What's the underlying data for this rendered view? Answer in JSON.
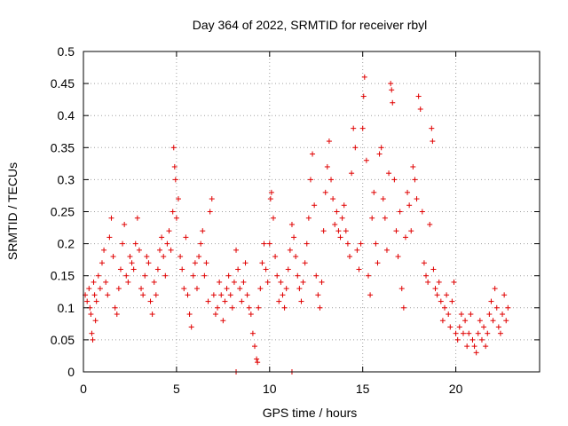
{
  "chart_data": {
    "type": "scatter",
    "title": "Day 364 of 2022, SRMTID for receiver rbyl",
    "xlabel": "GPS time / hours",
    "ylabel": "SRMTID / TECUs",
    "xlim": [
      0,
      24.5
    ],
    "ylim": [
      0,
      0.5
    ],
    "xticks": [
      0,
      5,
      10,
      15,
      20
    ],
    "yticks": [
      0,
      0.05,
      0.1,
      0.15,
      0.2,
      0.25,
      0.3,
      0.35,
      0.4,
      0.45,
      0.5
    ],
    "xtick_labels": [
      "0",
      "5",
      "10",
      "15",
      "20"
    ],
    "ytick_labels": [
      "0",
      "0.05",
      "0.1",
      "0.15",
      "0.2",
      "0.25",
      "0.3",
      "0.35",
      "0.4",
      "0.45",
      "0.5"
    ],
    "grid": true,
    "marker": "plus",
    "color": "#e00000",
    "series": [
      {
        "points": [
          [
            0.1,
            0.12
          ],
          [
            0.2,
            0.11
          ],
          [
            0.3,
            0.13
          ],
          [
            0.35,
            0.1
          ],
          [
            0.4,
            0.09
          ],
          [
            0.45,
            0.06
          ],
          [
            0.5,
            0.05
          ],
          [
            0.55,
            0.14
          ],
          [
            0.6,
            0.12
          ],
          [
            0.65,
            0.08
          ],
          [
            0.7,
            0.11
          ],
          [
            0.8,
            0.15
          ],
          [
            0.9,
            0.13
          ],
          [
            1.0,
            0.17
          ],
          [
            1.1,
            0.19
          ],
          [
            1.2,
            0.14
          ],
          [
            1.3,
            0.12
          ],
          [
            1.4,
            0.21
          ],
          [
            1.5,
            0.24
          ],
          [
            1.6,
            0.18
          ],
          [
            1.7,
            0.1
          ],
          [
            1.8,
            0.09
          ],
          [
            1.9,
            0.13
          ],
          [
            2.0,
            0.16
          ],
          [
            2.1,
            0.2
          ],
          [
            2.2,
            0.23
          ],
          [
            2.3,
            0.15
          ],
          [
            2.4,
            0.14
          ],
          [
            2.5,
            0.18
          ],
          [
            2.6,
            0.17
          ],
          [
            2.7,
            0.16
          ],
          [
            2.8,
            0.2
          ],
          [
            2.9,
            0.24
          ],
          [
            3.0,
            0.19
          ],
          [
            3.1,
            0.13
          ],
          [
            3.2,
            0.12
          ],
          [
            3.3,
            0.15
          ],
          [
            3.4,
            0.18
          ],
          [
            3.5,
            0.17
          ],
          [
            3.6,
            0.11
          ],
          [
            3.7,
            0.09
          ],
          [
            3.8,
            0.14
          ],
          [
            3.9,
            0.12
          ],
          [
            4.0,
            0.16
          ],
          [
            4.1,
            0.19
          ],
          [
            4.2,
            0.21
          ],
          [
            4.3,
            0.18
          ],
          [
            4.4,
            0.15
          ],
          [
            4.5,
            0.2
          ],
          [
            4.6,
            0.22
          ],
          [
            4.7,
            0.19
          ],
          [
            4.8,
            0.25
          ],
          [
            4.85,
            0.35
          ],
          [
            4.9,
            0.32
          ],
          [
            4.95,
            0.3
          ],
          [
            5.0,
            0.24
          ],
          [
            5.1,
            0.27
          ],
          [
            5.2,
            0.18
          ],
          [
            5.3,
            0.16
          ],
          [
            5.4,
            0.13
          ],
          [
            5.5,
            0.21
          ],
          [
            5.6,
            0.12
          ],
          [
            5.7,
            0.09
          ],
          [
            5.8,
            0.07
          ],
          [
            5.9,
            0.15
          ],
          [
            6.0,
            0.17
          ],
          [
            6.1,
            0.13
          ],
          [
            6.2,
            0.18
          ],
          [
            6.3,
            0.2
          ],
          [
            6.4,
            0.22
          ],
          [
            6.5,
            0.15
          ],
          [
            6.6,
            0.17
          ],
          [
            6.7,
            0.11
          ],
          [
            6.8,
            0.25
          ],
          [
            6.9,
            0.27
          ],
          [
            7.0,
            0.12
          ],
          [
            7.1,
            0.09
          ],
          [
            7.2,
            0.1
          ],
          [
            7.3,
            0.14
          ],
          [
            7.4,
            0.12
          ],
          [
            7.5,
            0.08
          ],
          [
            7.6,
            0.11
          ],
          [
            7.7,
            0.13
          ],
          [
            7.8,
            0.15
          ],
          [
            7.9,
            0.12
          ],
          [
            8.0,
            0.1
          ],
          [
            8.1,
            0.14
          ],
          [
            8.2,
            0.19
          ],
          [
            8.3,
            0.16
          ],
          [
            8.4,
            0.13
          ],
          [
            8.5,
            0.11
          ],
          [
            8.6,
            0.14
          ],
          [
            8.7,
            0.17
          ],
          [
            8.8,
            0.12
          ],
          [
            8.9,
            0.1
          ],
          [
            9.0,
            0.09
          ],
          [
            9.1,
            0.06
          ],
          [
            9.2,
            0.04
          ],
          [
            9.3,
            0.02
          ],
          [
            9.35,
            0.015
          ],
          [
            9.4,
            0.1
          ],
          [
            9.5,
            0.13
          ],
          [
            9.6,
            0.17
          ],
          [
            9.7,
            0.2
          ],
          [
            9.8,
            0.16
          ],
          [
            9.9,
            0.14
          ],
          [
            10.0,
            0.2
          ],
          [
            10.05,
            0.27
          ],
          [
            10.1,
            0.28
          ],
          [
            10.2,
            0.24
          ],
          [
            10.3,
            0.18
          ],
          [
            10.4,
            0.15
          ],
          [
            10.5,
            0.11
          ],
          [
            10.6,
            0.14
          ],
          [
            10.7,
            0.12
          ],
          [
            10.8,
            0.1
          ],
          [
            10.9,
            0.13
          ],
          [
            11.0,
            0.16
          ],
          [
            11.1,
            0.19
          ],
          [
            11.2,
            0.23
          ],
          [
            11.3,
            0.21
          ],
          [
            11.4,
            0.18
          ],
          [
            11.5,
            0.15
          ],
          [
            11.6,
            0.13
          ],
          [
            11.7,
            0.11
          ],
          [
            11.8,
            0.14
          ],
          [
            11.9,
            0.17
          ],
          [
            12.0,
            0.2
          ],
          [
            12.1,
            0.24
          ],
          [
            12.2,
            0.3
          ],
          [
            12.3,
            0.34
          ],
          [
            12.4,
            0.26
          ],
          [
            12.5,
            0.15
          ],
          [
            12.6,
            0.12
          ],
          [
            12.7,
            0.1
          ],
          [
            12.8,
            0.14
          ],
          [
            12.9,
            0.22
          ],
          [
            13.0,
            0.28
          ],
          [
            13.1,
            0.32
          ],
          [
            13.2,
            0.36
          ],
          [
            13.3,
            0.3
          ],
          [
            13.4,
            0.27
          ],
          [
            13.5,
            0.23
          ],
          [
            13.6,
            0.25
          ],
          [
            13.7,
            0.22
          ],
          [
            13.8,
            0.21
          ],
          [
            13.9,
            0.24
          ],
          [
            14.0,
            0.26
          ],
          [
            14.1,
            0.22
          ],
          [
            14.2,
            0.2
          ],
          [
            14.3,
            0.18
          ],
          [
            14.4,
            0.31
          ],
          [
            14.5,
            0.38
          ],
          [
            14.6,
            0.35
          ],
          [
            14.7,
            0.19
          ],
          [
            14.8,
            0.16
          ],
          [
            14.9,
            0.2
          ],
          [
            15.0,
            0.38
          ],
          [
            15.05,
            0.43
          ],
          [
            15.1,
            0.46
          ],
          [
            15.2,
            0.33
          ],
          [
            15.3,
            0.15
          ],
          [
            15.4,
            0.12
          ],
          [
            15.5,
            0.24
          ],
          [
            15.6,
            0.28
          ],
          [
            15.7,
            0.2
          ],
          [
            15.8,
            0.17
          ],
          [
            15.9,
            0.34
          ],
          [
            16.0,
            0.35
          ],
          [
            16.1,
            0.27
          ],
          [
            16.2,
            0.24
          ],
          [
            16.3,
            0.19
          ],
          [
            16.4,
            0.31
          ],
          [
            16.5,
            0.45
          ],
          [
            16.55,
            0.44
          ],
          [
            16.6,
            0.42
          ],
          [
            16.7,
            0.3
          ],
          [
            16.8,
            0.22
          ],
          [
            16.9,
            0.18
          ],
          [
            17.0,
            0.25
          ],
          [
            17.1,
            0.13
          ],
          [
            17.2,
            0.1
          ],
          [
            17.3,
            0.21
          ],
          [
            17.4,
            0.28
          ],
          [
            17.5,
            0.26
          ],
          [
            17.6,
            0.22
          ],
          [
            17.7,
            0.32
          ],
          [
            17.8,
            0.3
          ],
          [
            17.9,
            0.27
          ],
          [
            18.0,
            0.43
          ],
          [
            18.1,
            0.41
          ],
          [
            18.2,
            0.25
          ],
          [
            18.3,
            0.17
          ],
          [
            18.4,
            0.15
          ],
          [
            18.5,
            0.14
          ],
          [
            18.6,
            0.23
          ],
          [
            18.7,
            0.38
          ],
          [
            18.75,
            0.36
          ],
          [
            18.8,
            0.16
          ],
          [
            18.9,
            0.13
          ],
          [
            19.0,
            0.12
          ],
          [
            19.1,
            0.14
          ],
          [
            19.2,
            0.11
          ],
          [
            19.3,
            0.08
          ],
          [
            19.4,
            0.1
          ],
          [
            19.5,
            0.12
          ],
          [
            19.6,
            0.09
          ],
          [
            19.7,
            0.07
          ],
          [
            19.8,
            0.11
          ],
          [
            19.9,
            0.14
          ],
          [
            20.0,
            0.06
          ],
          [
            20.1,
            0.05
          ],
          [
            20.2,
            0.07
          ],
          [
            20.3,
            0.09
          ],
          [
            20.4,
            0.06
          ],
          [
            20.5,
            0.08
          ],
          [
            20.6,
            0.04
          ],
          [
            20.7,
            0.06
          ],
          [
            20.8,
            0.09
          ],
          [
            20.9,
            0.05
          ],
          [
            21.0,
            0.04
          ],
          [
            21.1,
            0.03
          ],
          [
            21.2,
            0.06
          ],
          [
            21.3,
            0.08
          ],
          [
            21.4,
            0.05
          ],
          [
            21.5,
            0.07
          ],
          [
            21.6,
            0.04
          ],
          [
            21.7,
            0.06
          ],
          [
            21.8,
            0.09
          ],
          [
            21.9,
            0.11
          ],
          [
            22.0,
            0.08
          ],
          [
            22.1,
            0.13
          ],
          [
            22.2,
            0.1
          ],
          [
            22.3,
            0.07
          ],
          [
            22.4,
            0.06
          ],
          [
            22.5,
            0.09
          ],
          [
            22.6,
            0.12
          ],
          [
            22.7,
            0.08
          ],
          [
            22.8,
            0.1
          ],
          [
            8.2,
            0.0
          ],
          [
            11.2,
            0.0
          ]
        ]
      }
    ]
  }
}
